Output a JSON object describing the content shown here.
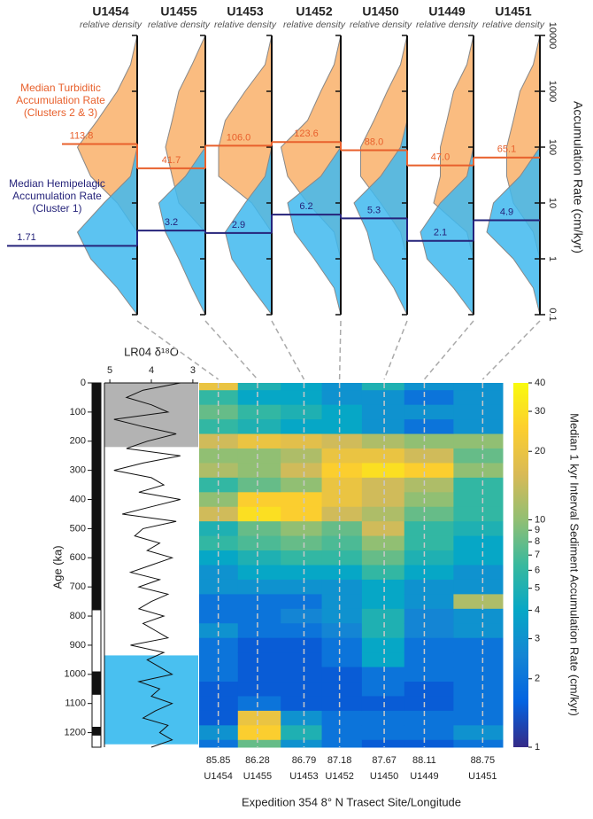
{
  "chart_data": [
    {
      "type": "density",
      "categories": [
        "U1454",
        "U1455",
        "U1453",
        "U1452",
        "U1450",
        "U1449",
        "U1451"
      ],
      "density_label": "relative density",
      "rates": [
        0.1,
        0.3,
        1,
        3,
        10,
        30,
        100,
        300,
        1000,
        3000,
        10000
      ],
      "ylim": [
        0.1,
        10000
      ],
      "yticks": [
        0.1,
        1,
        10,
        100,
        1000,
        10000
      ],
      "log": true,
      "ylabel": "Accumulation Rate (cm/kyr)",
      "series": [
        {
          "name": "Median Turbiditic Accumulation Rate (Clusters 2 & 3)",
          "color": "#e8602c",
          "fill": "#f9b06a",
          "values": [
            113.8,
            41.7,
            106.0,
            123.6,
            88.0,
            47.0,
            65.1
          ],
          "value_labels": [
            "113.8",
            "41.7",
            "106.0",
            "123.6",
            "88.0",
            "47.0",
            "65.1"
          ],
          "density": [
            [
              0,
              0,
              0,
              0,
              0.3,
              0.7,
              0.9,
              0.6,
              0.3,
              0.1,
              0
            ],
            [
              0,
              0,
              0,
              0,
              0.4,
              0.5,
              0.6,
              0.5,
              0.4,
              0.2,
              0
            ],
            [
              0,
              0,
              0,
              0,
              0.3,
              0.8,
              0.8,
              0.7,
              0.4,
              0.1,
              0
            ],
            [
              0,
              0,
              0,
              0.1,
              0.5,
              0.8,
              0.9,
              0.5,
              0.3,
              0.1,
              0
            ],
            [
              0,
              0,
              0,
              0.1,
              0.4,
              0.7,
              0.7,
              0.5,
              0.3,
              0.1,
              0
            ],
            [
              0,
              0,
              0,
              0.1,
              0.6,
              0.5,
              0.5,
              0.4,
              0.3,
              0.1,
              0
            ],
            [
              0,
              0,
              0,
              0.1,
              0.4,
              0.5,
              0.5,
              0.4,
              0.3,
              0.1,
              0
            ]
          ]
        },
        {
          "name": "Median Hemipelagic Accumulation Rate (Cluster 1)",
          "color": "#25237a",
          "fill": "#3fb8ef",
          "values": [
            1.71,
            3.2,
            2.9,
            6.2,
            5.3,
            2.1,
            4.9
          ],
          "value_labels": [
            "1.71",
            "3.2",
            "2.9",
            "6.2",
            "5.3",
            "2.1",
            "4.9"
          ],
          "density": [
            [
              0,
              0.3,
              0.7,
              0.9,
              0.5,
              0.1,
              0,
              0,
              0,
              0,
              0
            ],
            [
              0,
              0.2,
              0.4,
              0.6,
              0.7,
              0.3,
              0,
              0,
              0,
              0,
              0
            ],
            [
              0,
              0.3,
              0.6,
              0.7,
              0.4,
              0.1,
              0,
              0,
              0,
              0,
              0
            ],
            [
              0,
              0.1,
              0.4,
              0.7,
              0.8,
              0.3,
              0,
              0,
              0,
              0,
              0
            ],
            [
              0,
              0.2,
              0.5,
              0.6,
              0.8,
              0.4,
              0.1,
              0,
              0,
              0,
              0
            ],
            [
              0,
              0.3,
              0.7,
              0.8,
              0.5,
              0.1,
              0,
              0,
              0,
              0,
              0
            ],
            [
              0,
              0.1,
              0.4,
              0.8,
              0.7,
              0.3,
              0,
              0,
              0,
              0,
              0
            ]
          ]
        }
      ]
    },
    {
      "type": "line",
      "title": "LR04 δ¹⁸O",
      "color": "#111111",
      "x": [
        0,
        25,
        50,
        75,
        100,
        125,
        150,
        175,
        200,
        225,
        250,
        275,
        300,
        325,
        350,
        375,
        400,
        425,
        450,
        475,
        500,
        525,
        550,
        575,
        600,
        625,
        650,
        675,
        700,
        725,
        750,
        775,
        800,
        825,
        850,
        875,
        900,
        925,
        950,
        975,
        1000,
        1025,
        1050,
        1075,
        1100,
        1125,
        1150,
        1175,
        1200,
        1225,
        1250
      ],
      "values": [
        3.3,
        4.2,
        4.6,
        4.0,
        3.6,
        4.9,
        4.2,
        3.4,
        4.1,
        4.6,
        3.3,
        4.2,
        4.9,
        4.0,
        3.7,
        4.3,
        3.3,
        4.0,
        4.7,
        3.4,
        4.2,
        4.4,
        3.8,
        4.1,
        3.5,
        4.0,
        4.5,
        3.8,
        4.3,
        3.6,
        4.0,
        4.3,
        3.7,
        4.2,
        3.9,
        3.6,
        4.5,
        3.7,
        4.1,
        3.8,
        3.5,
        4.3,
        3.8,
        4.0,
        3.5,
        3.9,
        4.2,
        3.6,
        3.8,
        3.5,
        4.0
      ],
      "xlim": [
        5.13,
        2.87
      ],
      "xticks": [
        5,
        4,
        3
      ],
      "ylim": [
        0,
        1250
      ],
      "yticks": [
        0,
        100,
        200,
        300,
        400,
        500,
        600,
        700,
        800,
        900,
        1000,
        1100,
        1200
      ],
      "ylabel": "Age (ka)",
      "bands": [
        {
          "range": [
            0,
            220
          ],
          "color": "#b3b3b3"
        },
        {
          "range": [
            935,
            1240
          ],
          "color": "#49c0f0"
        }
      ],
      "polarity_normal": [
        [
          0,
          780
        ],
        [
          990,
          1070
        ],
        [
          1180,
          1210
        ]
      ]
    },
    {
      "type": "heatmap",
      "categories": [
        "U1454",
        "U1455",
        "U1453",
        "U1452",
        "U1450",
        "U1449",
        "U1451"
      ],
      "longitudes": [
        85.85,
        86.28,
        86.79,
        87.18,
        87.67,
        88.11,
        88.75
      ],
      "xlim": [
        85.64,
        88.97
      ],
      "xlabel": "Expedition 354 8° N Trasect Site/Longitude",
      "y": [
        0,
        50,
        100,
        150,
        200,
        250,
        300,
        350,
        400,
        450,
        500,
        550,
        600,
        650,
        700,
        750,
        800,
        850,
        900,
        950,
        1000,
        1050,
        1100,
        1150,
        1200,
        1250
      ],
      "ylim": [
        0,
        1250
      ],
      "values": [
        [
          20,
          6,
          8,
          6,
          15,
          10,
          12,
          6,
          10,
          15,
          5,
          6,
          4,
          3,
          3,
          2,
          2,
          3,
          2,
          2,
          2,
          1.5,
          1.5,
          1.5,
          3,
          2
        ],
        [
          5,
          4,
          6,
          5,
          20,
          10,
          10,
          8,
          25,
          30,
          8,
          7,
          5,
          4,
          3,
          2,
          2,
          2,
          1.5,
          1.5,
          1.5,
          1.5,
          2,
          20,
          25,
          8
        ],
        [
          4,
          4,
          5,
          4,
          18,
          12,
          15,
          10,
          25,
          25,
          10,
          8,
          6,
          4,
          3,
          2,
          2.5,
          2,
          1.5,
          1.5,
          1.5,
          1.5,
          1.5,
          3,
          5,
          3
        ],
        [
          3,
          3,
          4,
          4,
          15,
          20,
          25,
          20,
          20,
          15,
          8,
          7,
          6,
          4,
          3,
          3,
          3,
          2.5,
          2,
          2,
          1.5,
          1.5,
          1.5,
          2,
          2,
          2
        ],
        [
          5,
          3,
          3,
          3,
          12,
          20,
          30,
          15,
          15,
          12,
          15,
          10,
          8,
          6,
          4,
          4,
          5,
          5,
          4,
          4,
          2,
          2,
          1.5,
          2,
          2,
          1.5
        ],
        [
          3,
          2,
          3,
          2,
          10,
          15,
          25,
          12,
          10,
          8,
          6,
          6,
          5,
          4,
          3,
          3,
          2.5,
          2.5,
          2,
          2,
          2,
          1.5,
          1.5,
          2,
          2,
          1.5
        ],
        [
          3,
          3,
          3,
          3,
          10,
          8,
          10,
          6,
          6,
          6,
          5,
          4,
          4,
          3,
          3,
          12,
          3,
          3,
          2,
          2,
          2,
          2,
          2,
          2,
          3,
          2
        ]
      ],
      "clim": [
        1,
        40
      ],
      "log": true,
      "colorbar_ticks": [
        1,
        2,
        3,
        4,
        5,
        6,
        7,
        8,
        9,
        10,
        20,
        30,
        40
      ],
      "colorbar_label": "Median 1 kyr Interval Sediment Accumulation Rate (cm/kyr)"
    }
  ]
}
